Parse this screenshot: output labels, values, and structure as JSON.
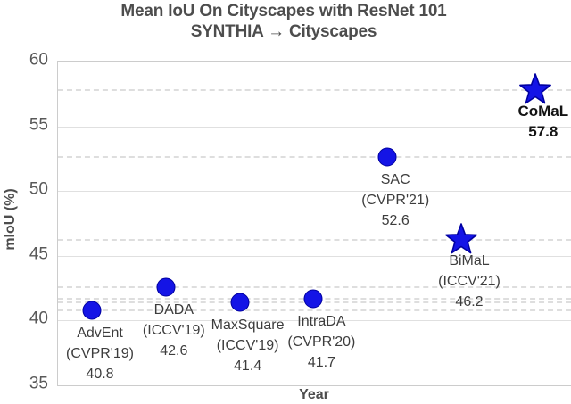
{
  "chart_data": {
    "type": "scatter",
    "title": "Mean IoU On Cityscapes with ResNet 101",
    "subtitle": "SYNTHIA → Cityscapes",
    "xlabel": "Year",
    "ylabel": "mIoU (%)",
    "ylim": [
      35,
      60
    ],
    "ytick_step": 5,
    "grid": {
      "horizontal_major": "solid",
      "per_point_value_guides": "dashed"
    },
    "legend": "none",
    "colors": {
      "marker_fill": "#1414e6",
      "marker_edge": "#0000a0",
      "title_text": "#4d4d4d",
      "tick_text": "#595959",
      "label_text": "#3d3d3d",
      "emphasis_text": "#141414",
      "gridline": "#e0e0e0",
      "guide_dash": "#dedede"
    },
    "points": [
      {
        "name": "AdvEnt",
        "venue": "(CVPR'19)",
        "value": 40.8,
        "marker": "circle",
        "emphasis": false
      },
      {
        "name": "DADA",
        "venue": "(ICCV'19)",
        "value": 42.6,
        "marker": "circle",
        "emphasis": false
      },
      {
        "name": "MaxSquare",
        "venue": "(ICCV'19)",
        "value": 41.4,
        "marker": "circle",
        "emphasis": false
      },
      {
        "name": "IntraDA",
        "venue": "(CVPR'20)",
        "value": 41.7,
        "marker": "circle",
        "emphasis": false
      },
      {
        "name": "SAC",
        "venue": "(CVPR'21)",
        "value": 52.6,
        "marker": "circle",
        "emphasis": false
      },
      {
        "name": "BiMaL",
        "venue": "(ICCV'21)",
        "value": 46.2,
        "marker": "star",
        "emphasis": false
      },
      {
        "name": "CoMaL",
        "venue": "",
        "value": 57.8,
        "marker": "star",
        "emphasis": true
      }
    ]
  }
}
